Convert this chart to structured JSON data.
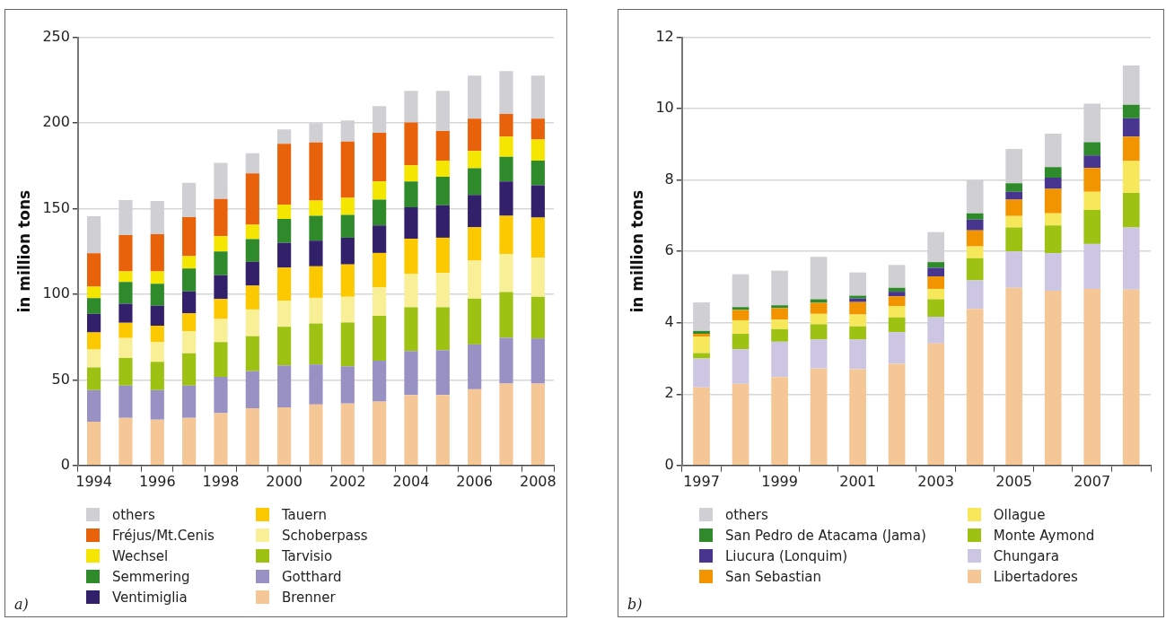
{
  "chart_data": [
    {
      "type": "bar",
      "stacked": true,
      "ylabel": "in million tons",
      "categories": [
        "1994",
        null,
        "1996",
        null,
        "1998",
        null,
        "2000",
        null,
        "2002",
        null,
        "2004",
        null,
        "2006",
        null,
        "2008"
      ],
      "ylim": [
        0,
        250
      ],
      "yticks": [
        0,
        50,
        100,
        150,
        200,
        250
      ],
      "grid": "y",
      "legend": "bottom",
      "annotations": [
        "a)"
      ],
      "series": [
        {
          "name": "Brenner",
          "color": "#f6c796",
          "values": [
            25.6,
            27.8,
            26.7,
            27.8,
            30.6,
            33.4,
            33.9,
            35.6,
            36.2,
            37.3,
            41.2,
            41.2,
            44.5,
            47.8,
            47.8
          ]
        },
        {
          "name": "Gotthard",
          "color": "#9990c4",
          "values": [
            18.4,
            18.8,
            17.3,
            18.8,
            21.1,
            21.7,
            24.5,
            23.4,
            21.7,
            23.9,
            25.6,
            26.1,
            26.2,
            26.8,
            26.4
          ]
        },
        {
          "name": "Tarvisio",
          "color": "#9ec213",
          "values": [
            13.3,
            16.1,
            16.5,
            18.9,
            20.4,
            20.4,
            22.6,
            23.9,
            25.6,
            26.2,
            25.6,
            25.1,
            26.7,
            26.7,
            24.3
          ]
        },
        {
          "name": "Schoberpass",
          "color": "#f8ef96",
          "values": [
            10.4,
            11.7,
            11.6,
            12.8,
            13.4,
            15.6,
            15.1,
            15.0,
            15.0,
            16.6,
            19.4,
            20.0,
            22.2,
            22.2,
            22.8
          ]
        },
        {
          "name": "Tauern",
          "color": "#fcc800",
          "values": [
            10.0,
            8.9,
            9.5,
            10.5,
            11.7,
            13.9,
            19.4,
            18.4,
            18.9,
            20.1,
            20.6,
            20.6,
            19.5,
            22.3,
            23.4
          ]
        },
        {
          "name": "Ventimiglia",
          "color": "#33206a",
          "values": [
            10.8,
            11.1,
            11.7,
            12.8,
            13.9,
            13.9,
            14.5,
            15.0,
            15.6,
            16.1,
            18.4,
            18.9,
            18.9,
            20.0,
            18.9
          ]
        },
        {
          "name": "Semmering",
          "color": "#2e8a2a",
          "values": [
            9.2,
            12.8,
            12.8,
            13.4,
            13.9,
            13.3,
            13.9,
            14.5,
            13.3,
            15.0,
            15.0,
            16.7,
            15.6,
            14.5,
            14.4
          ]
        },
        {
          "name": "Wechsel",
          "color": "#f4e600",
          "values": [
            6.7,
            6.1,
            7.2,
            7.2,
            8.9,
            8.4,
            8.4,
            8.9,
            10.0,
            10.6,
            9.5,
            9.4,
            10.0,
            11.7,
            12.3
          ]
        },
        {
          "name": "Fréjus/Mt.Cenis",
          "color": "#e8620c",
          "values": [
            19.5,
            21.2,
            21.7,
            22.8,
            21.7,
            30.0,
            35.6,
            33.9,
            32.9,
            28.4,
            25.0,
            17.3,
            18.9,
            13.3,
            12.2
          ]
        },
        {
          "name": "others",
          "color": "#d0d0d4",
          "values": [
            21.7,
            20.5,
            19.5,
            20.1,
            21.1,
            11.7,
            8.3,
            11.3,
            12.2,
            15.6,
            18.4,
            23.4,
            25.1,
            25.0,
            25.1
          ]
        }
      ]
    },
    {
      "type": "bar",
      "stacked": true,
      "ylabel": "in million tons",
      "categories": [
        "1997",
        null,
        "1999",
        null,
        "2001",
        null,
        "2003",
        null,
        "2005",
        null,
        "2007",
        null
      ],
      "ylim": [
        0,
        12
      ],
      "yticks": [
        0,
        2,
        4,
        6,
        8,
        10,
        12
      ],
      "grid": "y",
      "legend": "bottom",
      "annotations": [
        "b)"
      ],
      "series": [
        {
          "name": "Libertadores",
          "color": "#f6c796",
          "values": [
            2.19,
            2.29,
            2.48,
            2.72,
            2.7,
            2.85,
            3.42,
            4.39,
            4.98,
            4.9,
            4.95,
            4.93
          ]
        },
        {
          "name": "Chungara",
          "color": "#cdc6e2",
          "values": [
            0.81,
            0.97,
            0.99,
            0.81,
            0.83,
            0.89,
            0.75,
            0.8,
            1.02,
            1.05,
            1.26,
            1.74
          ]
        },
        {
          "name": "Monte Aymond",
          "color": "#9ec213",
          "values": [
            0.15,
            0.43,
            0.35,
            0.43,
            0.37,
            0.41,
            0.49,
            0.62,
            0.67,
            0.78,
            0.95,
            0.97
          ]
        },
        {
          "name": "Ollague",
          "color": "#f6e85a",
          "values": [
            0.46,
            0.38,
            0.27,
            0.29,
            0.33,
            0.32,
            0.29,
            0.33,
            0.32,
            0.34,
            0.51,
            0.89
          ]
        },
        {
          "name": "San Sebastian",
          "color": "#f29400",
          "values": [
            0.08,
            0.29,
            0.32,
            0.31,
            0.35,
            0.27,
            0.35,
            0.45,
            0.46,
            0.68,
            0.67,
            0.69
          ]
        },
        {
          "name": "Liucura (Lonquim)",
          "color": "#47358f",
          "values": [
            0,
            0,
            0,
            null,
            0.1,
            0.13,
            0.24,
            0.3,
            0.22,
            0.32,
            0.35,
            0.51
          ]
        },
        {
          "name": "San Pedro de Atacama (Jama)",
          "color": "#2e8a2a",
          "values": [
            0.08,
            0.08,
            0.08,
            0.1,
            0.08,
            0.11,
            0.16,
            0.18,
            0.24,
            0.29,
            0.37,
            0.38
          ]
        },
        {
          "name": "others",
          "color": "#d0d0d4",
          "values": [
            0.8,
            0.92,
            0.97,
            1.19,
            0.65,
            0.64,
            0.84,
            0.93,
            0.96,
            0.94,
            1.08,
            1.1
          ]
        }
      ]
    }
  ]
}
